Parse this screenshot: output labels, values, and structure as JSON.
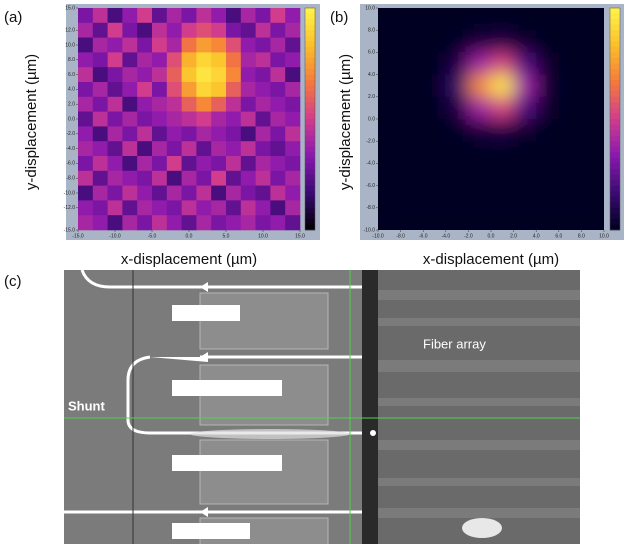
{
  "chart_data": [
    {
      "type": "heatmap",
      "panel_label": "(a)",
      "xlabel": "x-displacement (µm)",
      "ylabel": "y-displacement (µm)",
      "xlim": [
        -15,
        15
      ],
      "ylim": [
        -15,
        15
      ],
      "xticks": [
        {
          "value": -15,
          "label": "-15.0"
        },
        {
          "value": -10,
          "label": "-10.0"
        },
        {
          "value": -5,
          "label": "-5.0"
        },
        {
          "value": 0,
          "label": "0.0"
        },
        {
          "value": 5,
          "label": "5.0"
        },
        {
          "value": 10,
          "label": "10.0"
        },
        {
          "value": 15,
          "label": "15.0"
        }
      ],
      "yticks": [
        {
          "value": 15,
          "label": "15.0"
        },
        {
          "value": 12,
          "label": "12.0"
        },
        {
          "value": 10,
          "label": "10.0"
        },
        {
          "value": 8,
          "label": "8.0"
        },
        {
          "value": 6,
          "label": "6.0"
        },
        {
          "value": 4,
          "label": "4.0"
        },
        {
          "value": 2,
          "label": "2.0"
        },
        {
          "value": 0,
          "label": "0.0"
        },
        {
          "value": -2,
          "label": "-2.0"
        },
        {
          "value": -4,
          "label": "-4.0"
        },
        {
          "value": -6,
          "label": "-6.0"
        },
        {
          "value": -8,
          "label": "-8.0"
        },
        {
          "value": -10,
          "label": "-10.0"
        },
        {
          "value": -12,
          "label": "-12.0"
        },
        {
          "value": -15,
          "label": "-15.0"
        }
      ],
      "zlim": [
        0,
        1
      ],
      "interpolation": "nearest",
      "colorscale": [
        "#000000",
        "#3a0a72",
        "#8a18b0",
        "#d23c8c",
        "#f57a3c",
        "#fbc02a",
        "#fff44a"
      ],
      "x": [
        -14,
        -12,
        -10,
        -8,
        -6,
        -4,
        -2,
        0,
        2,
        4,
        6,
        8,
        10,
        12,
        14
      ],
      "y": [
        14,
        12,
        10,
        8,
        6,
        4,
        2,
        0,
        -2,
        -4,
        -6,
        -8,
        -10,
        -12,
        -14
      ],
      "values": [
        [
          0.3,
          0.45,
          0.2,
          0.35,
          0.5,
          0.25,
          0.4,
          0.3,
          0.45,
          0.35,
          0.2,
          0.4,
          0.3,
          0.5,
          0.35
        ],
        [
          0.4,
          0.25,
          0.5,
          0.3,
          0.2,
          0.45,
          0.35,
          0.5,
          0.55,
          0.5,
          0.3,
          0.25,
          0.45,
          0.3,
          0.4
        ],
        [
          0.2,
          0.4,
          0.35,
          0.45,
          0.3,
          0.5,
          0.4,
          0.65,
          0.75,
          0.7,
          0.55,
          0.35,
          0.3,
          0.4,
          0.25
        ],
        [
          0.35,
          0.3,
          0.5,
          0.25,
          0.4,
          0.35,
          0.55,
          0.8,
          0.9,
          0.85,
          0.65,
          0.4,
          0.45,
          0.3,
          0.35
        ],
        [
          0.45,
          0.2,
          0.3,
          0.4,
          0.35,
          0.45,
          0.6,
          0.85,
          0.95,
          0.9,
          0.7,
          0.35,
          0.3,
          0.45,
          0.2
        ],
        [
          0.3,
          0.4,
          0.25,
          0.35,
          0.5,
          0.3,
          0.55,
          0.75,
          0.9,
          0.85,
          0.6,
          0.4,
          0.35,
          0.3,
          0.4
        ],
        [
          0.4,
          0.3,
          0.45,
          0.2,
          0.35,
          0.4,
          0.45,
          0.6,
          0.7,
          0.6,
          0.45,
          0.3,
          0.4,
          0.35,
          0.3
        ],
        [
          0.25,
          0.45,
          0.3,
          0.4,
          0.3,
          0.35,
          0.4,
          0.45,
          0.5,
          0.4,
          0.35,
          0.45,
          0.25,
          0.4,
          0.35
        ],
        [
          0.35,
          0.2,
          0.4,
          0.3,
          0.45,
          0.25,
          0.35,
          0.3,
          0.4,
          0.35,
          0.3,
          0.2,
          0.4,
          0.3,
          0.45
        ],
        [
          0.4,
          0.35,
          0.25,
          0.45,
          0.2,
          0.4,
          0.3,
          0.45,
          0.25,
          0.4,
          0.35,
          0.45,
          0.3,
          0.25,
          0.35
        ],
        [
          0.3,
          0.45,
          0.35,
          0.2,
          0.4,
          0.3,
          0.5,
          0.25,
          0.35,
          0.3,
          0.45,
          0.25,
          0.4,
          0.35,
          0.3
        ],
        [
          0.45,
          0.25,
          0.4,
          0.35,
          0.3,
          0.45,
          0.2,
          0.4,
          0.3,
          0.5,
          0.25,
          0.35,
          0.45,
          0.3,
          0.4
        ],
        [
          0.2,
          0.4,
          0.3,
          0.45,
          0.35,
          0.25,
          0.4,
          0.3,
          0.45,
          0.2,
          0.4,
          0.3,
          0.25,
          0.45,
          0.35
        ],
        [
          0.35,
          0.3,
          0.45,
          0.25,
          0.4,
          0.35,
          0.3,
          0.45,
          0.35,
          0.4,
          0.25,
          0.45,
          0.35,
          0.2,
          0.4
        ],
        [
          0.4,
          0.35,
          0.2,
          0.4,
          0.3,
          0.45,
          0.35,
          0.25,
          0.4,
          0.3,
          0.35,
          0.4,
          0.3,
          0.35,
          0.25
        ]
      ]
    },
    {
      "type": "heatmap",
      "panel_label": "(b)",
      "xlabel": "x-displacement (µm)",
      "ylabel": "y-displacement (µm)",
      "xlim": [
        -10,
        10
      ],
      "ylim": [
        -10,
        10
      ],
      "xticks": [
        {
          "value": -10,
          "label": "-10.0"
        },
        {
          "value": -8,
          "label": "-8.0"
        },
        {
          "value": -6,
          "label": "-6.0"
        },
        {
          "value": -4,
          "label": "-4.0"
        },
        {
          "value": -2,
          "label": "-2.0"
        },
        {
          "value": 0,
          "label": "0.0"
        },
        {
          "value": 2,
          "label": "2.0"
        },
        {
          "value": 4,
          "label": "4.0"
        },
        {
          "value": 6,
          "label": "6.0"
        },
        {
          "value": 8,
          "label": "8.0"
        },
        {
          "value": 10,
          "label": "10.0"
        }
      ],
      "yticks": [
        {
          "value": 10,
          "label": "10.0"
        },
        {
          "value": 8,
          "label": "8.0"
        },
        {
          "value": 6,
          "label": "6.0"
        },
        {
          "value": 4,
          "label": "4.0"
        },
        {
          "value": 2,
          "label": "2.0"
        },
        {
          "value": 0,
          "label": "0.0"
        },
        {
          "value": -2,
          "label": "-2.0"
        },
        {
          "value": -4,
          "label": "-4.0"
        },
        {
          "value": -6,
          "label": "-6.0"
        },
        {
          "value": -8,
          "label": "-8.0"
        },
        {
          "value": -10,
          "label": "-10.0"
        }
      ],
      "zlim": [
        0,
        1
      ],
      "interpolation": "smooth",
      "colorscale": [
        "#000020",
        "#3a0a72",
        "#8a18b0",
        "#d23c8c",
        "#f57a3c",
        "#fbc02a",
        "#fff44a"
      ],
      "x": [
        -9,
        -7,
        -5,
        -3,
        -1,
        1,
        3,
        5,
        7,
        9
      ],
      "y": [
        9,
        7,
        5,
        3,
        1,
        -1,
        -3,
        -5,
        -7,
        -9
      ],
      "values": [
        [
          0,
          0,
          0,
          0,
          0,
          0,
          0,
          0,
          0,
          0
        ],
        [
          0,
          0,
          0,
          0.01,
          0.06,
          0.08,
          0.03,
          0,
          0,
          0
        ],
        [
          0,
          0,
          0,
          0.08,
          0.38,
          0.52,
          0.21,
          0.02,
          0,
          0
        ],
        [
          0,
          0,
          0.01,
          0.15,
          0.71,
          0.96,
          0.38,
          0.04,
          0,
          0
        ],
        [
          0,
          0,
          0,
          0.08,
          0.38,
          0.52,
          0.21,
          0.02,
          0,
          0
        ],
        [
          0,
          0,
          0,
          0.01,
          0.06,
          0.08,
          0.03,
          0,
          0,
          0
        ],
        [
          0,
          0,
          0,
          0,
          0,
          0,
          0,
          0,
          0,
          0
        ],
        [
          0,
          0,
          0,
          0,
          0,
          0,
          0,
          0,
          0,
          0
        ],
        [
          0,
          0,
          0,
          0,
          0,
          0,
          0,
          0,
          0,
          0
        ],
        [
          0,
          0,
          0,
          0,
          0,
          0,
          0,
          0,
          0,
          0
        ]
      ]
    }
  ],
  "photo": {
    "panel_label": "(c)",
    "annotations": [
      "Shunt",
      "Fiber array"
    ]
  }
}
